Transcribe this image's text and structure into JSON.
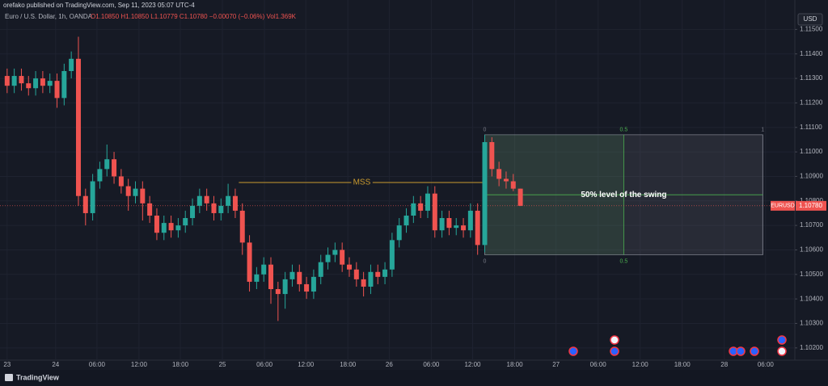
{
  "chart_data": {
    "type": "candlestick",
    "header": "orefako published on TradingView.com, Sep 11, 2023 05:07 UTC-4",
    "symbol_text": "Euro / U.S. Dollar, 1h, OANDA",
    "ohlc_text": "O1.10850 H1.10850 L1.10779 C1.10780 −0.00070 (−0.06%) Vol1.369K",
    "currency": "USD",
    "brand": "TradingView",
    "up_color": "#26a69a",
    "down_color": "#ef5350",
    "open": [
      1.1131,
      1.1127,
      1.1131,
      1.1128,
      1.1126,
      1.113,
      1.1127,
      1.1129,
      1.1122,
      1.1133,
      1.1138,
      1.1082,
      1.1075,
      1.1088,
      1.1093,
      1.1097,
      1.109,
      1.1086,
      1.1082,
      1.1085,
      1.1079,
      1.1074,
      1.1067,
      1.1071,
      1.1068,
      1.107,
      1.1073,
      1.1078,
      1.1082,
      1.1079,
      1.1075,
      1.1078,
      1.1082,
      1.1076,
      1.1063,
      1.1047,
      1.105,
      1.1054,
      1.1044,
      1.1042,
      1.1048,
      1.1051,
      1.1046,
      1.1043,
      1.1049,
      1.1055,
      1.1058,
      1.106,
      1.1054,
      1.1052,
      1.1048,
      1.1045,
      1.1051,
      1.1049,
      1.1052,
      1.1064,
      1.107,
      1.1074,
      1.1079,
      1.1076,
      1.1083,
      1.1068,
      1.1073,
      1.1069,
      1.107,
      1.1068,
      1.1076,
      1.1062,
      1.1104,
      1.1093,
      1.1089,
      1.1088,
      1.1085
    ],
    "high": [
      1.1134,
      1.1134,
      1.1134,
      1.1131,
      1.1133,
      1.1133,
      1.1132,
      1.1132,
      1.1136,
      1.1141,
      1.1147,
      1.1085,
      1.1091,
      1.1096,
      1.1103,
      1.11,
      1.1093,
      1.1089,
      1.1088,
      1.1088,
      1.1082,
      1.1077,
      1.1074,
      1.1074,
      1.1073,
      1.1076,
      1.1081,
      1.1085,
      1.1085,
      1.1082,
      1.1081,
      1.1087,
      1.1085,
      1.1079,
      1.1066,
      1.1053,
      1.1057,
      1.1057,
      1.1047,
      1.1051,
      1.1054,
      1.1054,
      1.1049,
      1.1052,
      1.1058,
      1.1061,
      1.1063,
      1.1063,
      1.1057,
      1.1055,
      1.1051,
      1.1054,
      1.1054,
      1.1055,
      1.1067,
      1.1073,
      1.1077,
      1.1082,
      1.1082,
      1.1086,
      1.1086,
      1.1076,
      1.1076,
      1.1073,
      1.1073,
      1.1079,
      1.1079,
      1.1107,
      1.1106,
      1.1096,
      1.1092,
      1.1091,
      1.1085
    ],
    "low": [
      1.1124,
      1.1124,
      1.1125,
      1.1123,
      1.1123,
      1.1124,
      1.1124,
      1.1118,
      1.1119,
      1.113,
      1.1078,
      1.107,
      1.1072,
      1.1085,
      1.109,
      1.1087,
      1.1083,
      1.1076,
      1.1079,
      1.1072,
      1.1071,
      1.1064,
      1.1064,
      1.1065,
      1.1065,
      1.1067,
      1.107,
      1.1075,
      1.1076,
      1.1072,
      1.1072,
      1.1075,
      1.1073,
      1.1058,
      1.1043,
      1.1044,
      1.1047,
      1.1038,
      1.1031,
      1.1036,
      1.1045,
      1.1043,
      1.104,
      1.104,
      1.1046,
      1.1052,
      1.1055,
      1.1051,
      1.1049,
      1.1045,
      1.1041,
      1.1042,
      1.1046,
      1.1046,
      1.1049,
      1.1061,
      1.1067,
      1.1071,
      1.1073,
      1.1073,
      1.1065,
      1.1065,
      1.1066,
      1.1066,
      1.1065,
      1.1065,
      1.1058,
      1.1059,
      1.109,
      1.1086,
      1.1085,
      1.1084,
      1.10779
    ],
    "close": [
      1.1127,
      1.1131,
      1.1128,
      1.1126,
      1.113,
      1.1127,
      1.1129,
      1.1122,
      1.1133,
      1.1138,
      1.1082,
      1.1075,
      1.1088,
      1.1093,
      1.1097,
      1.109,
      1.1086,
      1.1082,
      1.1085,
      1.1079,
      1.1074,
      1.1067,
      1.1071,
      1.1068,
      1.107,
      1.1073,
      1.1078,
      1.1082,
      1.1079,
      1.1075,
      1.1078,
      1.1082,
      1.1076,
      1.1063,
      1.1047,
      1.105,
      1.1054,
      1.1044,
      1.1042,
      1.1048,
      1.1051,
      1.1046,
      1.1043,
      1.1049,
      1.1055,
      1.1058,
      1.106,
      1.1054,
      1.1052,
      1.1048,
      1.1045,
      1.1051,
      1.1049,
      1.1052,
      1.1064,
      1.107,
      1.1074,
      1.1079,
      1.1076,
      1.1083,
      1.1068,
      1.1073,
      1.1069,
      1.107,
      1.1068,
      1.1076,
      1.1062,
      1.1104,
      1.1093,
      1.1089,
      1.1088,
      1.1085,
      1.1078
    ],
    "xlim": [
      -1,
      110.5
    ],
    "xticks": [
      {
        "value": 0,
        "label": "23"
      },
      {
        "value": 6.8,
        "label": "24"
      },
      {
        "value": 12.6,
        "label": "06:00"
      },
      {
        "value": 18.5,
        "label": "12:00"
      },
      {
        "value": 24.3,
        "label": "18:00"
      },
      {
        "value": 30.2,
        "label": "25"
      },
      {
        "value": 36.1,
        "label": "06:00"
      },
      {
        "value": 41.9,
        "label": "12:00"
      },
      {
        "value": 47.8,
        "label": "18:00"
      },
      {
        "value": 53.6,
        "label": "26"
      },
      {
        "value": 59.5,
        "label": "06:00"
      },
      {
        "value": 65.3,
        "label": "12:00"
      },
      {
        "value": 71.2,
        "label": "18:00"
      },
      {
        "value": 77.0,
        "label": "27"
      },
      {
        "value": 82.9,
        "label": "06:00"
      },
      {
        "value": 88.8,
        "label": "12:00"
      },
      {
        "value": 94.7,
        "label": "18:00"
      },
      {
        "value": 100.6,
        "label": "28"
      },
      {
        "value": 106.4,
        "label": "06:00"
      }
    ],
    "ylim": [
      1.1015,
      1.1162
    ],
    "yticks": [
      {
        "value": 1.115,
        "label": "1.11500"
      },
      {
        "value": 1.114,
        "label": "1.11400"
      },
      {
        "value": 1.113,
        "label": "1.11300"
      },
      {
        "value": 1.112,
        "label": "1.11200"
      },
      {
        "value": 1.111,
        "label": "1.11100"
      },
      {
        "value": 1.11,
        "label": "1.11000"
      },
      {
        "value": 1.109,
        "label": "1.10900"
      },
      {
        "value": 1.108,
        "label": "1.10800"
      },
      {
        "value": 1.107,
        "label": "1.10700"
      },
      {
        "value": 1.106,
        "label": "1.10600"
      },
      {
        "value": 1.105,
        "label": "1.10500"
      },
      {
        "value": 1.104,
        "label": "1.10400"
      },
      {
        "value": 1.103,
        "label": "1.10300"
      },
      {
        "value": 1.102,
        "label": "1.10200"
      }
    ],
    "grid": true,
    "mss": {
      "text": "MSS",
      "level": 1.10875,
      "x_start": 32.5,
      "x_end": 67,
      "color": "#c99a2e"
    },
    "fib": {
      "x_start": 67,
      "x_end": 106,
      "top": 1.1107,
      "bottom": 1.1058,
      "levels": [
        0,
        0.5,
        1
      ],
      "bottom_levels": [
        0,
        0.5
      ],
      "midline": 1.10825,
      "label": "50% level of the swing"
    },
    "last_price": {
      "name": "EURUSD",
      "value": 1.1078,
      "label": "1.10780"
    }
  }
}
